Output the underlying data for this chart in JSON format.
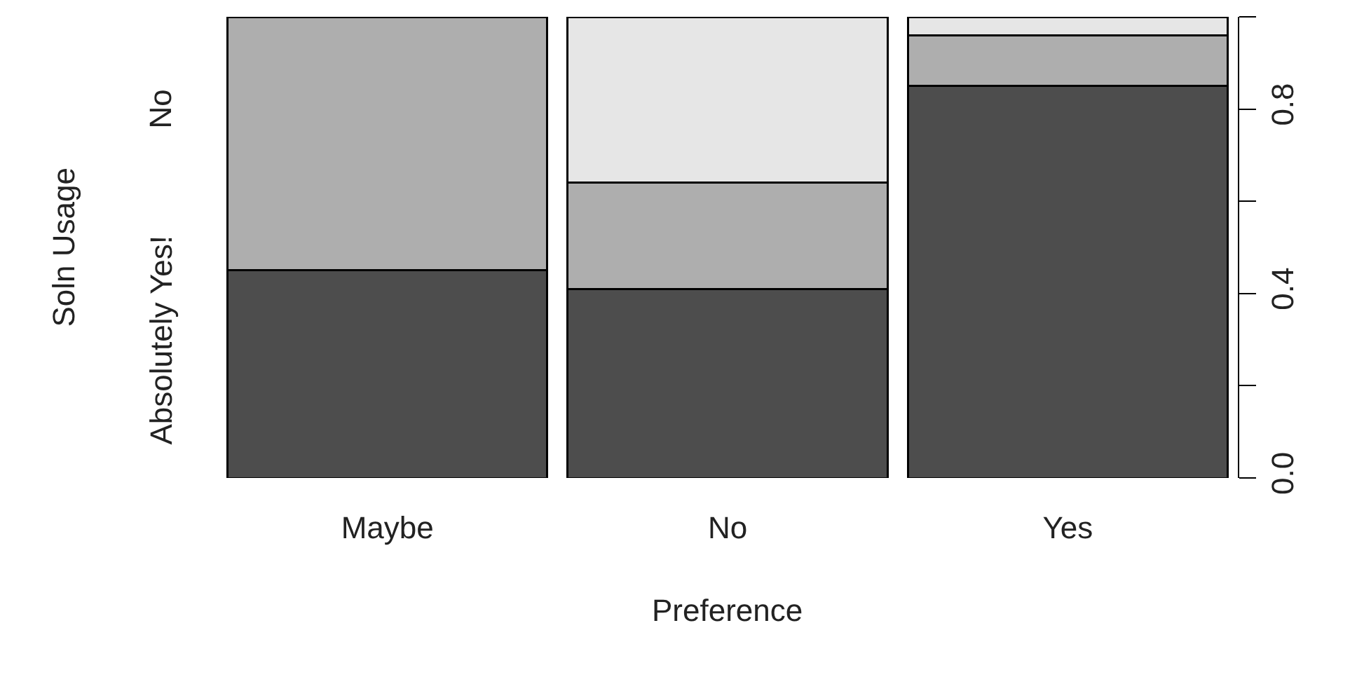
{
  "chart_data": {
    "type": "bar",
    "stacked": true,
    "xlabel": "Preference",
    "ylabel": "Soln Usage",
    "categories": [
      "Maybe",
      "No",
      "Yes"
    ],
    "series": [
      {
        "color": "#4d4d4d",
        "values": [
          0.45,
          0.41,
          0.85
        ]
      },
      {
        "color": "#aeaeae",
        "values": [
          0.55,
          0.23,
          0.11
        ]
      },
      {
        "color": "#e6e6e6",
        "values": [
          0,
          0.36,
          0.04
        ]
      }
    ],
    "ylim": [
      0,
      1
    ],
    "yticks": [
      {
        "value": 0,
        "label": "0.0"
      },
      {
        "value": 0.2,
        "label": null
      },
      0.4,
      {
        "value": 0.6,
        "label": null
      },
      0.8,
      {
        "value": 1,
        "label": null
      }
    ],
    "annotations": [
      "Absolutely Yes!",
      "No"
    ],
    "grid": false
  }
}
